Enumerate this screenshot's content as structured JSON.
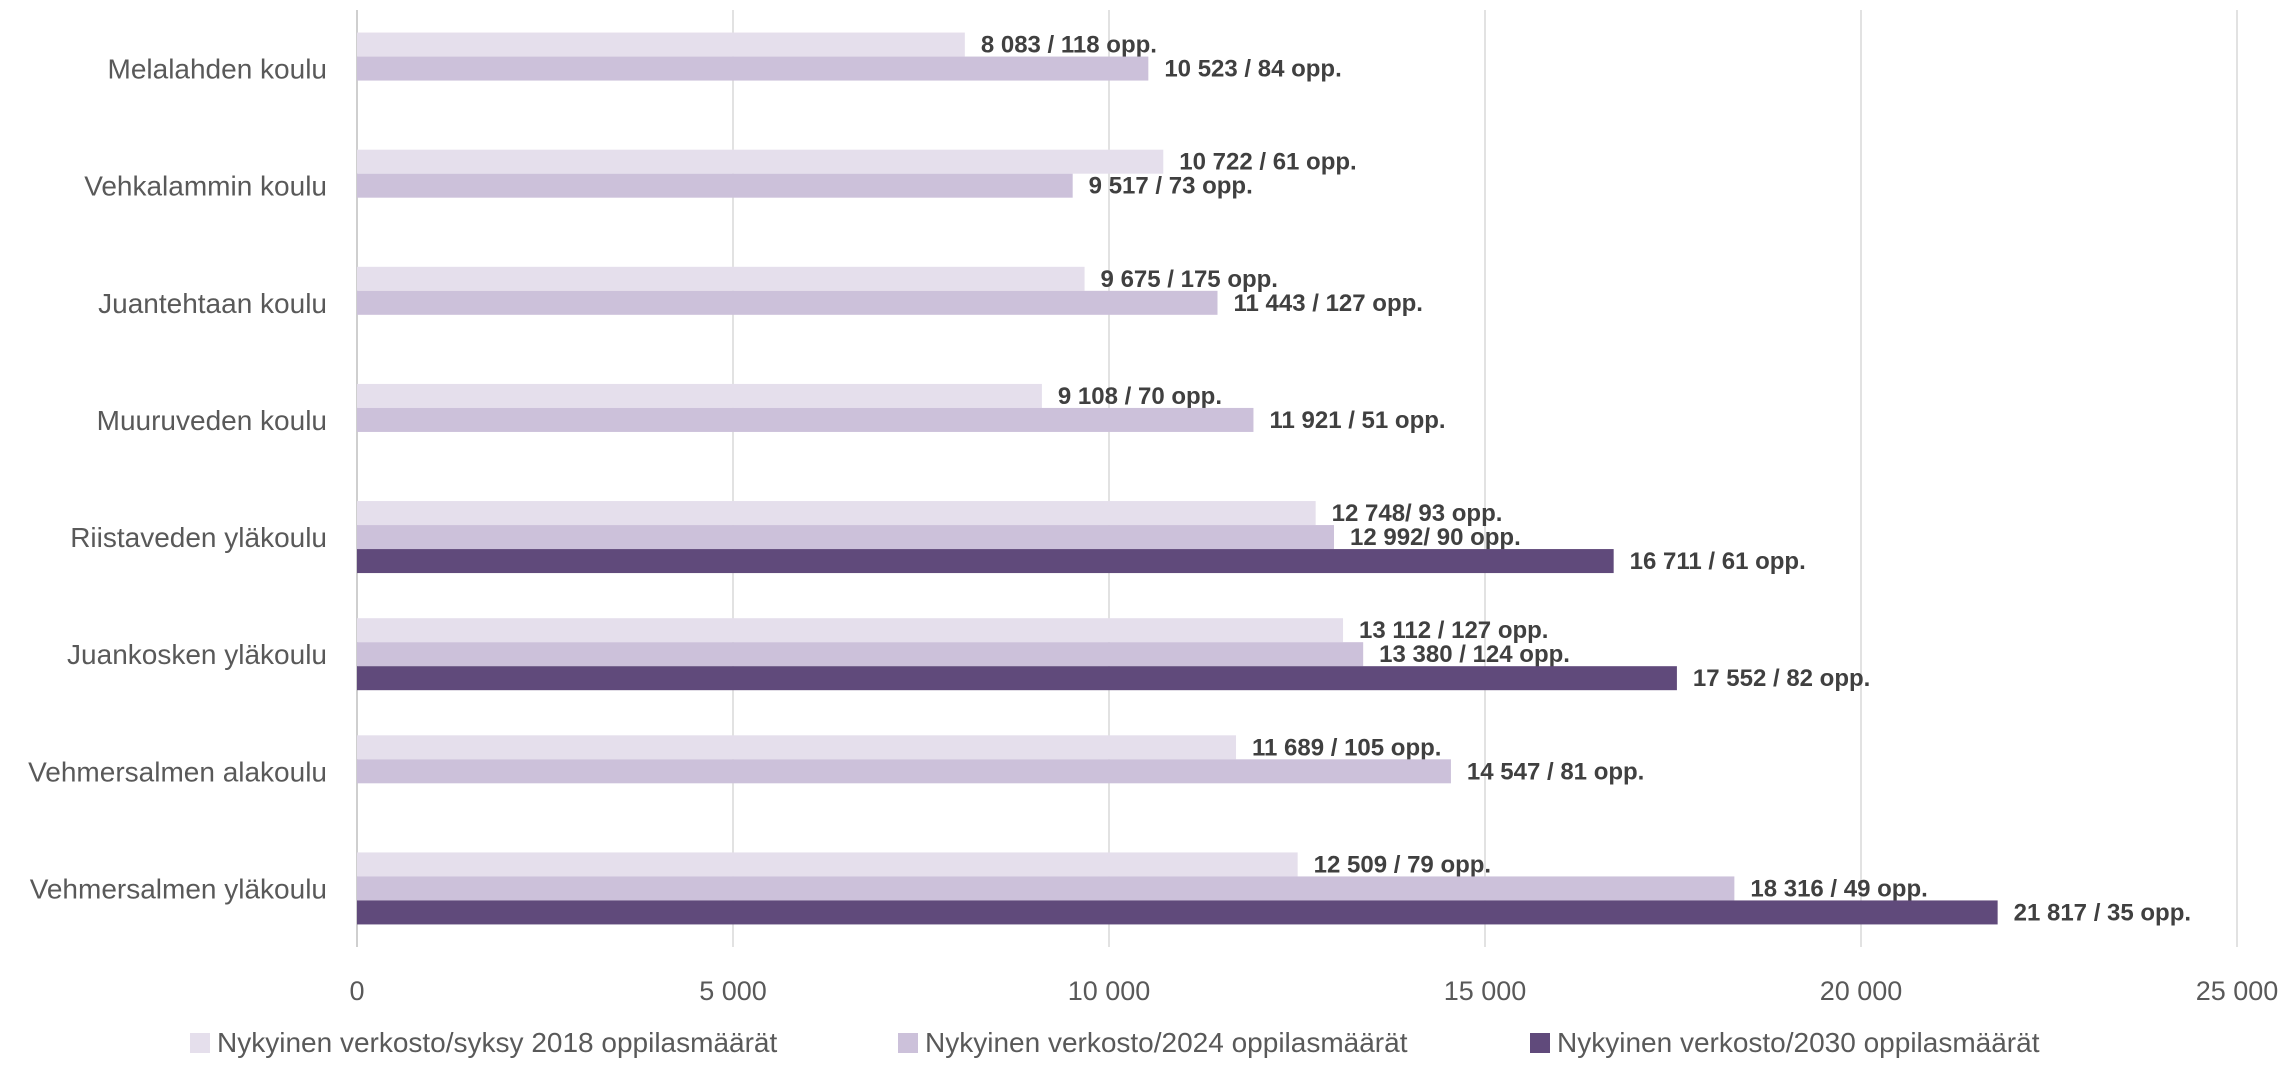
{
  "chart_data": {
    "type": "bar",
    "orientation": "horizontal",
    "categories": [
      "Melalahden koulu",
      "Vehkalammin koulu",
      "Juantehtaan koulu",
      "Muuruveden koulu",
      "Riistaveden yläkoulu",
      "Juankosken yläkoulu",
      "Vehmersalmen alakoulu",
      "Vehmersalmen yläkoulu"
    ],
    "series": [
      {
        "name": "Nykyinen verkosto/syksy 2018 oppilasmäärät",
        "color": "#E5DFEC",
        "values": [
          8083,
          10722,
          9675,
          9108,
          12748,
          13112,
          11689,
          12509
        ],
        "labels": [
          "8 083 / 118 opp.",
          "10 722 / 61 opp.",
          "9 675 / 175 opp.",
          "9 108 / 70 opp.",
          "12 748/ 93 opp.",
          "13 112 / 127 opp.",
          "11 689 / 105 opp.",
          "12 509 / 79 opp."
        ]
      },
      {
        "name": "Nykyinen verkosto/2024 oppilasmäärät",
        "color": "#CCC1DA",
        "values": [
          10523,
          9517,
          11443,
          11921,
          12992,
          13380,
          14547,
          18316
        ],
        "labels": [
          "10 523 / 84 opp.",
          "9 517 / 73 opp.",
          "11 443 / 127 opp.",
          "11 921 / 51 opp.",
          "12 992/ 90 opp.",
          "13 380 / 124 opp.",
          "14 547 / 81 opp.",
          "18 316 / 49 opp."
        ]
      },
      {
        "name": "Nykyinen verkosto/2030 oppilasmäärät",
        "color": "#604A7B",
        "values": [
          null,
          null,
          null,
          null,
          16711,
          17552,
          null,
          21817
        ],
        "labels": [
          null,
          null,
          null,
          null,
          "16 711 / 61 opp.",
          "17 552 / 82 opp.",
          null,
          "21 817 / 35 opp."
        ]
      }
    ],
    "xlim": [
      0,
      25000
    ],
    "xticks": [
      0,
      5000,
      10000,
      15000,
      20000,
      25000
    ],
    "xtick_labels": [
      "0",
      "5 000",
      "10 000",
      "15 000",
      "20 000",
      "25 000"
    ],
    "grid": true,
    "legend_position": "bottom"
  }
}
